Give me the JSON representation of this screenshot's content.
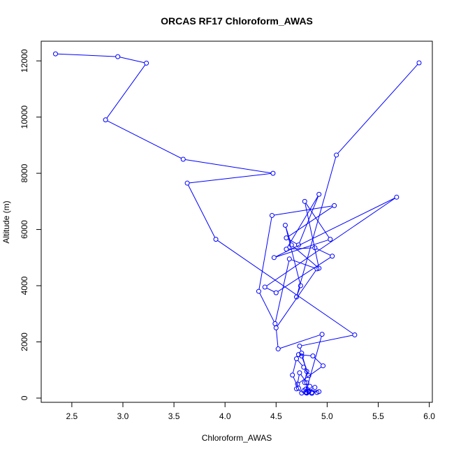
{
  "chart_data": {
    "type": "line",
    "title": "ORCAS RF17 Chloroform_AWAS",
    "xlabel": "Chloroform_AWAS",
    "ylabel": "Altitude (m)",
    "xlim": [
      2.2,
      6.03
    ],
    "ylim": [
      -150,
      12700
    ],
    "x_ticks": [
      "2.5",
      "3.0",
      "3.5",
      "4.0",
      "4.5",
      "5.0",
      "5.5",
      "6.0"
    ],
    "y_ticks": [
      "0",
      "2000",
      "4000",
      "6000",
      "8000",
      "10000",
      "12000"
    ],
    "grid": false,
    "marker": "open-circle",
    "color": "#0000ff",
    "series": [
      {
        "x": [
          2.34,
          2.95,
          3.23,
          2.83,
          3.59,
          4.47,
          3.63,
          3.91,
          5.27,
          4.73,
          4.75,
          4.8,
          4.78,
          4.83,
          4.88,
          4.8,
          4.82,
          4.8,
          4.85,
          4.92,
          4.79,
          4.9,
          4.85,
          4.82,
          4.77,
          4.75,
          4.72,
          4.66,
          4.7,
          4.77,
          4.82,
          4.75,
          4.72,
          4.86,
          4.96,
          4.71,
          4.7,
          4.73,
          4.8,
          4.79,
          4.95,
          4.52,
          4.5,
          4.9,
          4.63,
          4.49,
          4.33,
          4.46,
          5.07,
          4.6,
          4.72,
          4.92,
          4.6,
          4.88,
          5.05,
          4.5,
          4.39,
          5.68,
          4.48,
          5.03,
          4.78,
          4.92,
          4.65,
          4.59,
          4.74,
          4.7,
          5.09,
          5.9
        ],
        "y": [
          12250,
          12150,
          11920,
          9900,
          8500,
          8000,
          7650,
          5650,
          2250,
          1850,
          1600,
          950,
          550,
          420,
          380,
          200,
          250,
          180,
          200,
          230,
          320,
          200,
          170,
          220,
          260,
          180,
          350,
          820,
          1400,
          1100,
          800,
          1500,
          1550,
          1500,
          1150,
          500,
          330,
          900,
          550,
          200,
          2270,
          1750,
          2500,
          4600,
          4950,
          2650,
          3800,
          6500,
          6850,
          5700,
          5450,
          7250,
          5300,
          5350,
          5050,
          3750,
          3950,
          7150,
          5000,
          5650,
          7000,
          4620,
          5450,
          6150,
          4000,
          3600,
          8650,
          11930
        ]
      }
    ]
  }
}
